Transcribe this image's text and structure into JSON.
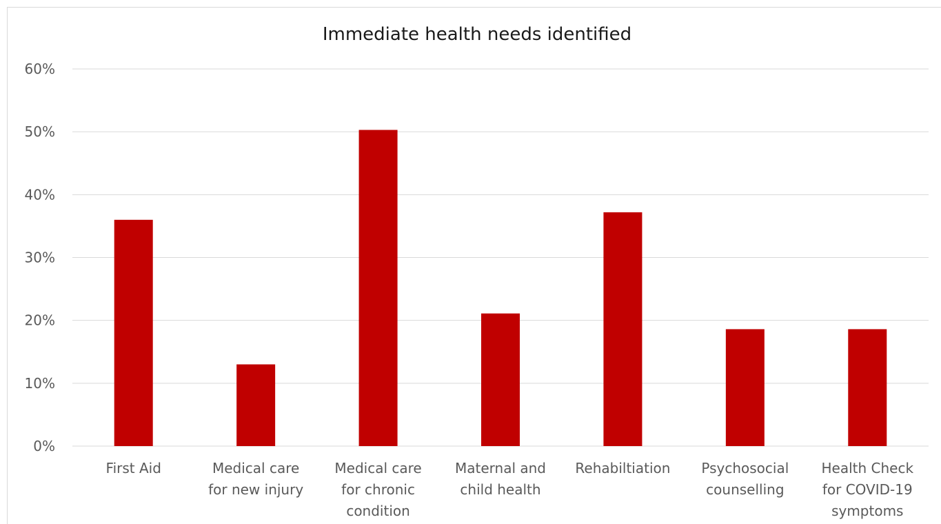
{
  "chart_data": {
    "type": "bar",
    "title": "Immediate health needs identified",
    "categories": [
      [
        "First Aid"
      ],
      [
        "Medical care",
        "for new injury"
      ],
      [
        "Medical care",
        "for chronic",
        "condition"
      ],
      [
        "Maternal and",
        "child health"
      ],
      [
        "Rehabiltiation"
      ],
      [
        "Psychosocial",
        "counselling"
      ],
      [
        "Health Check",
        "for COVID-19",
        "symptoms"
      ]
    ],
    "values": [
      0.36,
      0.13,
      0.503,
      0.211,
      0.372,
      0.186,
      0.186
    ],
    "ylim": [
      0,
      0.6
    ],
    "yticks": [
      0,
      0.1,
      0.2,
      0.3,
      0.4,
      0.5,
      0.6
    ],
    "ytick_labels": [
      "0%",
      "10%",
      "20%",
      "30%",
      "40%",
      "50%",
      "60%"
    ],
    "xlabel": "",
    "ylabel": "",
    "grid": true,
    "legend": "none",
    "bar_color": "#c00000"
  }
}
